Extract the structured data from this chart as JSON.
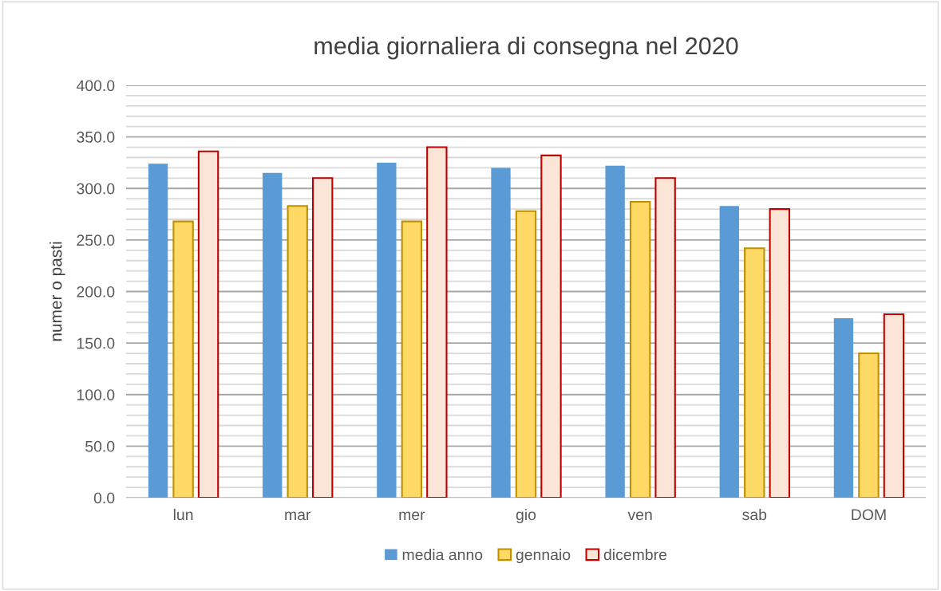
{
  "chart_data": {
    "type": "bar",
    "title": "media giornaliera di consegna nel 2020",
    "ylabel": "numer o pasti",
    "categories": [
      "lun",
      "mar",
      "mer",
      "gio",
      "ven",
      "sab",
      "DOM"
    ],
    "series": [
      {
        "name": "media anno",
        "color": "#5b9bd5",
        "values": [
          324,
          315,
          325,
          320,
          322,
          283,
          174
        ]
      },
      {
        "name": "gennaio",
        "color": "#ffd966",
        "values": [
          268,
          283,
          268,
          278,
          287,
          242,
          140
        ]
      },
      {
        "name": "dicembre",
        "color": "#fbe5d6",
        "values": [
          336,
          310,
          340,
          332,
          310,
          280,
          178
        ]
      }
    ],
    "ylim": [
      0,
      400
    ],
    "yticks": [
      {
        "value": 0,
        "label": "0.0"
      },
      {
        "value": 10,
        "label": null
      },
      {
        "value": 20,
        "label": null
      },
      {
        "value": 30,
        "label": null
      },
      {
        "value": 40,
        "label": null
      },
      {
        "value": 50,
        "label": "50.0"
      },
      {
        "value": 60,
        "label": null
      },
      {
        "value": 70,
        "label": null
      },
      {
        "value": 80,
        "label": null
      },
      {
        "value": 90,
        "label": null
      },
      {
        "value": 100,
        "label": "100.0"
      },
      {
        "value": 110,
        "label": null
      },
      {
        "value": 120,
        "label": null
      },
      {
        "value": 130,
        "label": null
      },
      {
        "value": 140,
        "label": null
      },
      {
        "value": 150,
        "label": "150.0"
      },
      {
        "value": 160,
        "label": null
      },
      {
        "value": 170,
        "label": null
      },
      {
        "value": 180,
        "label": null
      },
      {
        "value": 190,
        "label": null
      },
      {
        "value": 200,
        "label": "200.0"
      },
      {
        "value": 210,
        "label": null
      },
      {
        "value": 220,
        "label": null
      },
      {
        "value": 230,
        "label": null
      },
      {
        "value": 240,
        "label": null
      },
      {
        "value": 250,
        "label": "250.0"
      },
      {
        "value": 260,
        "label": null
      },
      {
        "value": 270,
        "label": null
      },
      {
        "value": 280,
        "label": null
      },
      {
        "value": 290,
        "label": null
      },
      {
        "value": 300,
        "label": "300.0"
      },
      {
        "value": 310,
        "label": null
      },
      {
        "value": 320,
        "label": null
      },
      {
        "value": 330,
        "label": null
      },
      {
        "value": 340,
        "label": null
      },
      {
        "value": 350,
        "label": "350.0"
      },
      {
        "value": 360,
        "label": null
      },
      {
        "value": 370,
        "label": null
      },
      {
        "value": 380,
        "label": null
      },
      {
        "value": 390,
        "label": null
      },
      {
        "value": 400,
        "label": "400.0"
      }
    ],
    "grid": "y",
    "legend": "bottom"
  }
}
